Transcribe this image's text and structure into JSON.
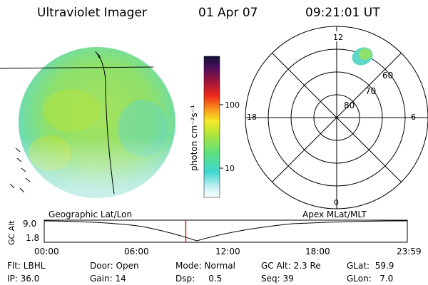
{
  "header": {
    "title": "Ultraviolet Imager",
    "date": "01 Apr 07",
    "time": "09:21:01 UT"
  },
  "colorbar": {
    "label": "photon cm⁻²s⁻¹",
    "ticks": [
      "100",
      "10"
    ]
  },
  "polar": {
    "mlt_labels": {
      "top": "12",
      "left": "18",
      "right": "6",
      "bottom": "0"
    },
    "lat_labels": [
      "60",
      "70",
      "80"
    ]
  },
  "timeline": {
    "left_title": "Geographic Lat/Lon",
    "right_title": "Apex MLat/MLT",
    "axis_label": "GC Alt",
    "y_ticks": [
      "9.0",
      "1.8"
    ],
    "x_ticks": [
      "00:00",
      "06:00",
      "12:00",
      "18:00",
      "23:59"
    ],
    "current_time_hours": 9.35
  },
  "info": {
    "row1": [
      "Flt: LBHL",
      "Door: Open",
      "Mode: Normal",
      "GC Alt: 2.3 Re",
      "GLat:  59.9"
    ],
    "row2": [
      "IP: 36.0",
      "Gain: 14",
      "Dsp:     0.5",
      "Seq: 39",
      "GLon:   7.0"
    ]
  },
  "colors": {
    "disk_main": "#8ee06a",
    "disk_edge": "#5fd7c6",
    "current_marker": "#d21e1e"
  }
}
